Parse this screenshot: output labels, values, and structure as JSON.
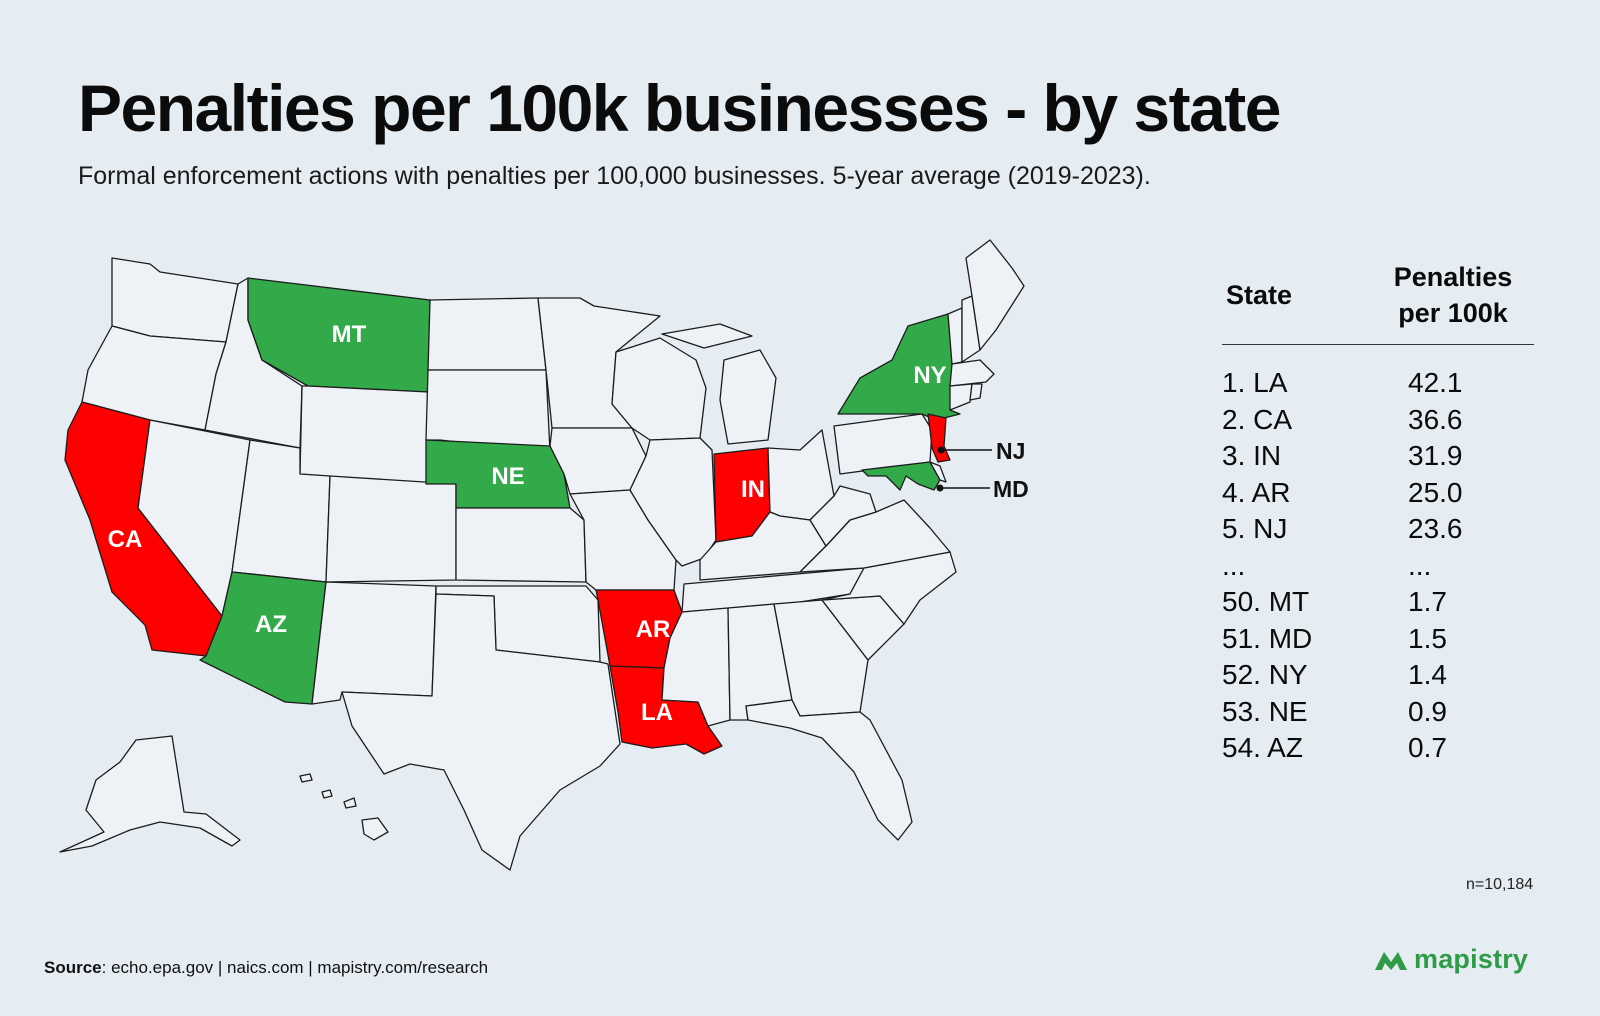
{
  "title": "Penalties per 100k businesses - by state",
  "subtitle": "Formal enforcement actions with penalties per 100,000 businesses. 5-year average (2019-2023).",
  "colors": {
    "highest": "#ff0000",
    "lowest": "#32aa4a",
    "neutral": "#eef2f6",
    "border": "#1c1c1c",
    "brand": "#2e9b46"
  },
  "map": {
    "highest_states": [
      "CA",
      "LA",
      "AR",
      "IN",
      "NJ"
    ],
    "lowest_states": [
      "MT",
      "NE",
      "AZ",
      "NY",
      "MD"
    ],
    "labels": {
      "MT": "MT",
      "NY": "NY",
      "NJ": "NJ",
      "NE": "NE",
      "MD": "MD",
      "IN": "IN",
      "CA": "CA",
      "AZ": "AZ",
      "AR": "AR",
      "LA": "LA"
    }
  },
  "table": {
    "header_state": "State",
    "header_value_line1": "Penalties",
    "header_value_line2": "per 100k",
    "rows": [
      {
        "state": "1. LA",
        "value": "42.1"
      },
      {
        "state": "2. CA",
        "value": "36.6"
      },
      {
        "state": "3. IN",
        "value": "31.9"
      },
      {
        "state": "4. AR",
        "value": "25.0"
      },
      {
        "state": "5. NJ",
        "value": "23.6"
      },
      {
        "state": "...",
        "value": "..."
      },
      {
        "state": "50. MT",
        "value": "1.7"
      },
      {
        "state": "51. MD",
        "value": "1.5"
      },
      {
        "state": "52. NY",
        "value": "1.4"
      },
      {
        "state": "53. NE",
        "value": "0.9"
      },
      {
        "state": "54. AZ",
        "value": "0.7"
      }
    ]
  },
  "sample_size": "n=10,184",
  "source": {
    "label": "Source",
    "text": ": echo.epa.gov | naics.com | mapistry.com/research"
  },
  "brand": {
    "name": "mapistry",
    "icon": "mapistry-logo-icon"
  }
}
